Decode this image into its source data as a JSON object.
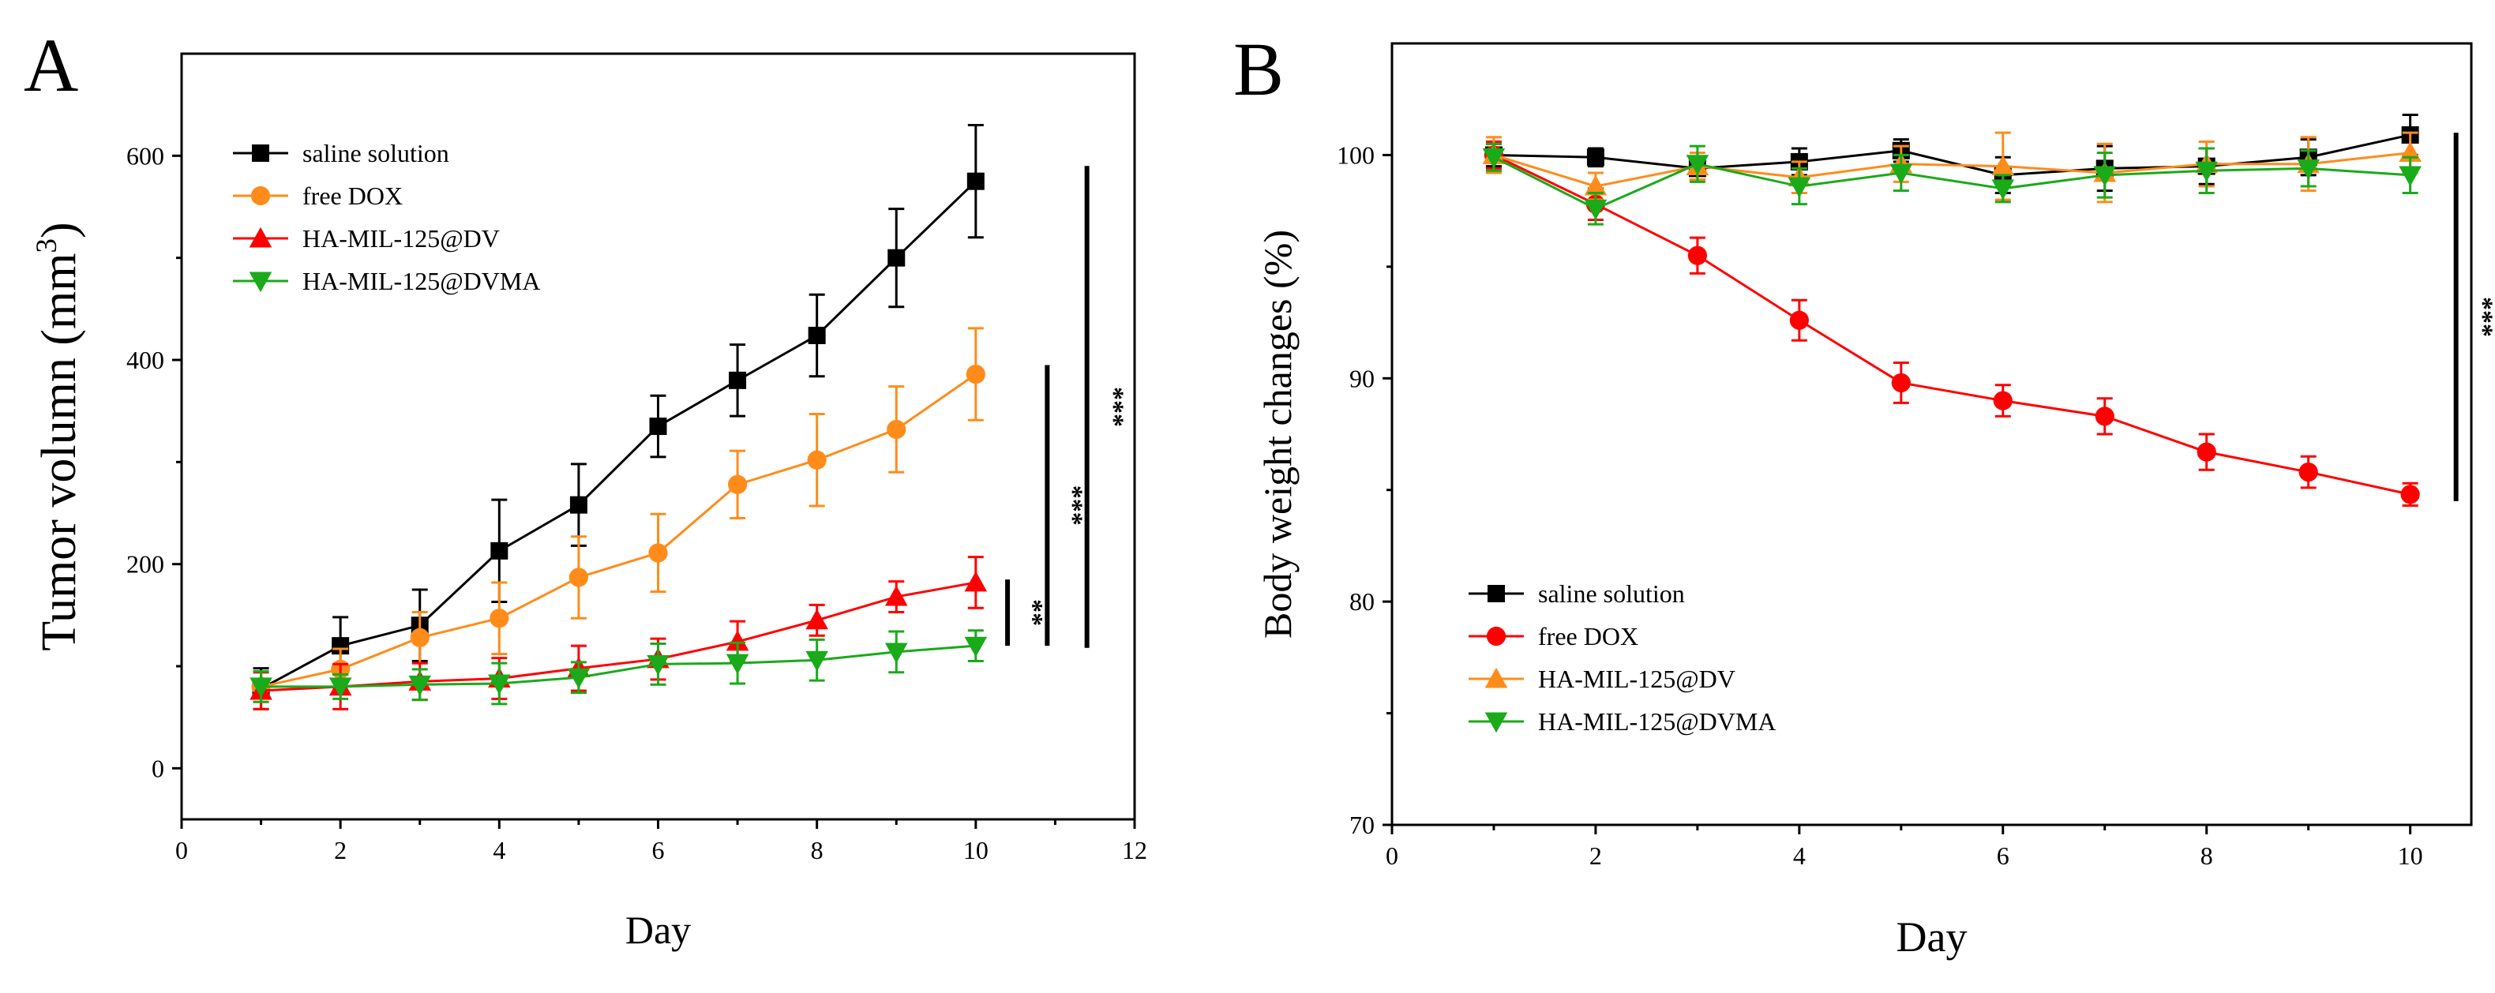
{
  "chart_data": [
    {
      "panel_label": "A",
      "type": "line",
      "xlabel": "Day",
      "ylabel": "Tumor volumn (mm",
      "ylabel_superscript": "3",
      "ylabel_close": ")",
      "xlim": [
        0,
        12
      ],
      "ylim": [
        -50,
        700
      ],
      "x_ticks": [
        "0",
        "2",
        "4",
        "6",
        "8",
        "10",
        "12"
      ],
      "y_ticks": [
        "0",
        "200",
        "400",
        "600"
      ],
      "legend_position": "top-left",
      "x": [
        1,
        2,
        3,
        4,
        5,
        6,
        7,
        8,
        9,
        10
      ],
      "series": [
        {
          "name": "saline solution",
          "color": "#000000",
          "marker": "square",
          "values": [
            78,
            120,
            140,
            213,
            258,
            335,
            380,
            424,
            500,
            575
          ],
          "errors": [
            20,
            28,
            35,
            50,
            40,
            30,
            35,
            40,
            48,
            55
          ]
        },
        {
          "name": "free DOX",
          "color": "#ff8c1a",
          "marker": "circle",
          "values": [
            80,
            97,
            128,
            147,
            187,
            211,
            278,
            302,
            332,
            386
          ],
          "errors": [
            15,
            20,
            25,
            35,
            40,
            38,
            33,
            45,
            42,
            45
          ]
        },
        {
          "name": "HA-MIL-125@DV",
          "color": "#ff0000",
          "marker": "triangle-up",
          "values": [
            76,
            80,
            85,
            88,
            98,
            107,
            124,
            145,
            168,
            182
          ],
          "errors": [
            18,
            22,
            18,
            20,
            22,
            20,
            20,
            15,
            15,
            25
          ]
        },
        {
          "name": "HA-MIL-125@DVMA",
          "color": "#1aaa1a",
          "marker": "triangle-down",
          "values": [
            80,
            80,
            82,
            83,
            89,
            102,
            103,
            106,
            114,
            120
          ],
          "errors": [
            15,
            12,
            15,
            20,
            15,
            20,
            20,
            20,
            20,
            15
          ]
        }
      ],
      "annotations": [
        "**",
        "***",
        "***"
      ]
    },
    {
      "panel_label": "B",
      "type": "line",
      "xlabel": "Day",
      "ylabel": "Body weight changes (%)",
      "xlim": [
        0,
        10.6
      ],
      "ylim": [
        70,
        105
      ],
      "x_ticks": [
        "0",
        "2",
        "4",
        "6",
        "8",
        "10"
      ],
      "y_ticks": [
        "70",
        "80",
        "90",
        "100"
      ],
      "legend_position": "bottom-left",
      "x": [
        1,
        2,
        3,
        4,
        5,
        6,
        7,
        8,
        9,
        10
      ],
      "series": [
        {
          "name": "saline solution",
          "color": "#000000",
          "marker": "square",
          "values": [
            100,
            99.9,
            99.4,
            99.7,
            100.2,
            99.1,
            99.4,
            99.5,
            99.9,
            100.9
          ],
          "errors": [
            0.5,
            0.4,
            0.5,
            0.6,
            0.5,
            0.8,
            1.0,
            0.8,
            0.8,
            0.9
          ]
        },
        {
          "name": "free DOX",
          "color": "#ff0000",
          "marker": "circle",
          "values": [
            100,
            97.8,
            95.5,
            92.6,
            89.8,
            89.0,
            88.3,
            86.7,
            85.8,
            84.8
          ],
          "errors": [
            0.6,
            0.7,
            0.8,
            0.9,
            0.9,
            0.7,
            0.8,
            0.8,
            0.7,
            0.5
          ]
        },
        {
          "name": "HA-MIL-125@DV",
          "color": "#ff8c1a",
          "marker": "triangle-up",
          "values": [
            100,
            98.6,
            99.5,
            99.0,
            99.6,
            99.5,
            99.2,
            99.6,
            99.6,
            100.1
          ],
          "errors": [
            0.8,
            0.6,
            0.6,
            0.7,
            0.8,
            1.5,
            1.3,
            1.0,
            1.2,
            0.9
          ]
        },
        {
          "name": "HA-MIL-125@DVMA",
          "color": "#1aaa1a",
          "marker": "triangle-down",
          "values": [
            99.9,
            97.6,
            99.6,
            98.6,
            99.2,
            98.5,
            99.1,
            99.3,
            99.4,
            99.1
          ],
          "errors": [
            0.6,
            0.7,
            0.8,
            0.8,
            0.8,
            0.6,
            1.0,
            1.0,
            0.8,
            0.8
          ]
        }
      ],
      "annotations": [
        "***"
      ]
    }
  ]
}
